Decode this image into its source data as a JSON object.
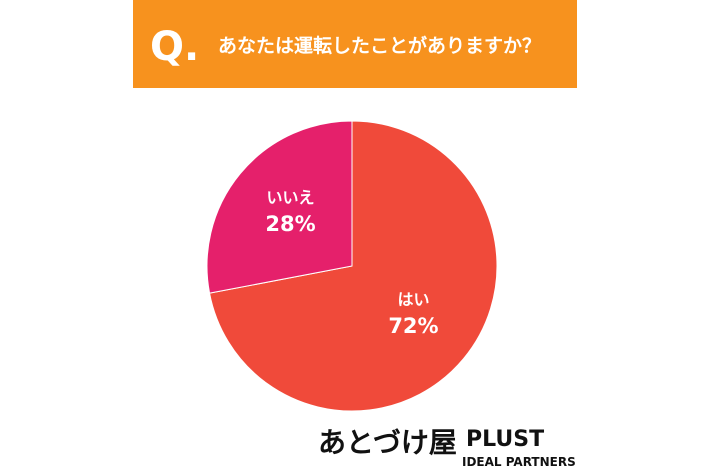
{
  "header": {
    "mark": "Q.",
    "question": "あなたは運転したことがありますか？"
  },
  "chart_data": {
    "type": "pie",
    "categories": [
      "はい",
      "いいえ"
    ],
    "values": [
      72,
      28
    ],
    "value_labels": [
      "72%",
      "28%"
    ],
    "colors": [
      "#f04a3a",
      "#e5206b"
    ]
  },
  "logos": {
    "left": "あとづけ屋",
    "right": "PLUST",
    "right_sub": "IDEAL PARTNERS"
  }
}
